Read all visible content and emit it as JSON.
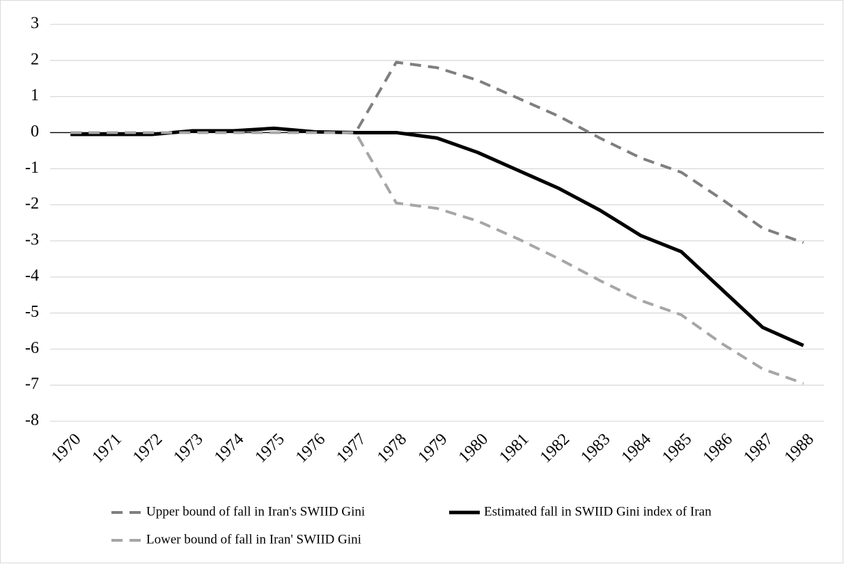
{
  "chart_data": {
    "type": "line",
    "categories": [
      "1970",
      "1971",
      "1972",
      "1973",
      "1974",
      "1975",
      "1976",
      "1977",
      "1978",
      "1979",
      "1980",
      "1981",
      "1982",
      "1983",
      "1984",
      "1985",
      "1986",
      "1987",
      "1988"
    ],
    "series": [
      {
        "name": "Upper bound of fall in Iran's SWIID Gini",
        "color": "#7f7f7f",
        "dashed": true,
        "values": [
          0,
          0,
          0,
          0,
          0,
          0,
          0,
          0,
          1.95,
          1.8,
          1.45,
          0.95,
          0.45,
          -0.15,
          -0.7,
          -1.1,
          -1.85,
          -2.65,
          -3.05
        ]
      },
      {
        "name": "Estimated fall in SWIID Gini index of Iran",
        "color": "#000000",
        "dashed": false,
        "values": [
          -0.05,
          -0.05,
          -0.05,
          0.05,
          0.05,
          0.12,
          0.02,
          0,
          0,
          -0.15,
          -0.55,
          -1.05,
          -1.55,
          -2.15,
          -2.85,
          -3.3,
          -4.35,
          -5.4,
          -5.9
        ]
      },
      {
        "name": "Lower bound of fall in Iran' SWIID Gini",
        "color": "#a6a6a6",
        "dashed": true,
        "values": [
          0,
          0,
          0,
          0,
          0,
          0,
          0,
          0,
          -1.95,
          -2.1,
          -2.45,
          -2.95,
          -3.5,
          -4.1,
          -4.65,
          -5.05,
          -5.85,
          -6.55,
          -6.95
        ]
      }
    ],
    "ylim": [
      -8,
      3
    ],
    "yticks": [
      -8,
      -7,
      -6,
      -5,
      -4,
      -3,
      -2,
      -1,
      0,
      1,
      2,
      3
    ],
    "grid": true,
    "legend": "bottom"
  }
}
